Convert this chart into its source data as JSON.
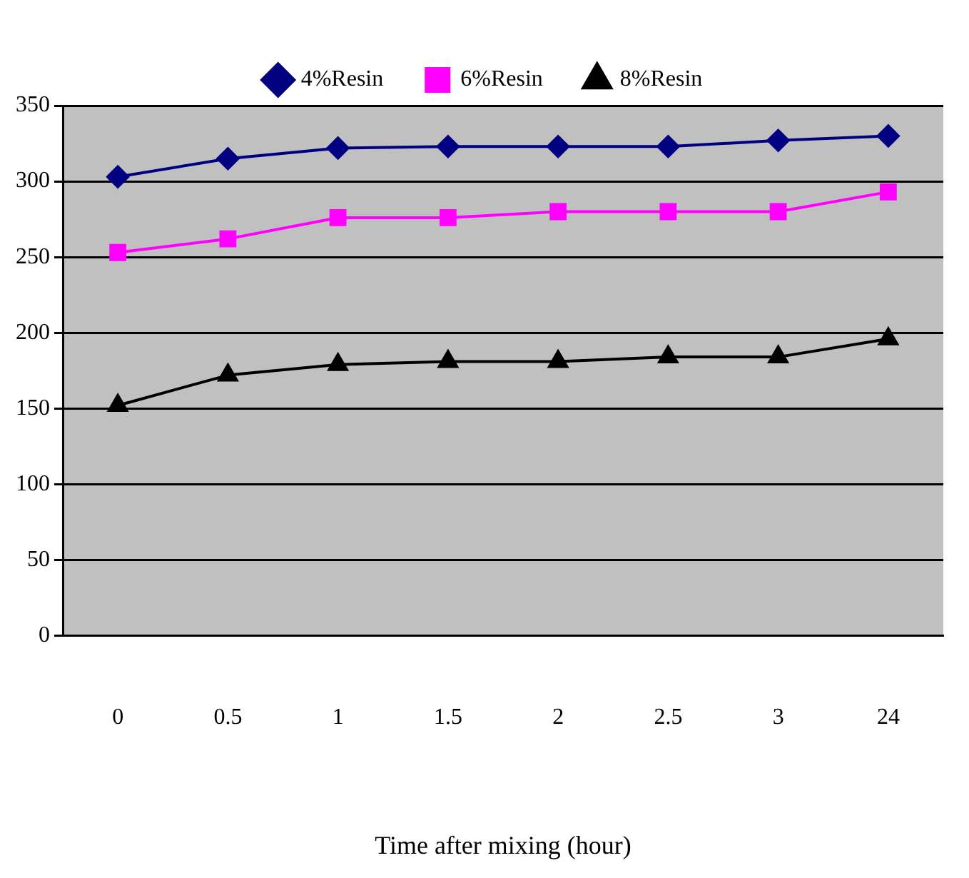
{
  "chart_data": {
    "type": "line",
    "xlabel": "Time after mixing (hour)",
    "categories": [
      "0",
      "0.5",
      "1",
      "1.5",
      "2",
      "2.5",
      "3",
      "24"
    ],
    "series": [
      {
        "name": "4%Resin",
        "color": "#000080",
        "marker": "diamond",
        "values": [
          303,
          315,
          322,
          323,
          323,
          323,
          327,
          330
        ]
      },
      {
        "name": "6%Resin",
        "color": "#ff00ff",
        "marker": "square",
        "values": [
          253,
          262,
          276,
          276,
          280,
          280,
          280,
          293
        ]
      },
      {
        "name": "8%Resin",
        "color": "#000000",
        "marker": "triangle",
        "values": [
          152,
          172,
          179,
          181,
          181,
          184,
          184,
          196
        ]
      }
    ],
    "ylim": [
      0,
      350
    ],
    "yticks": [
      0,
      50,
      100,
      150,
      200,
      250,
      300,
      350
    ],
    "grid": "y",
    "legend": "top"
  }
}
